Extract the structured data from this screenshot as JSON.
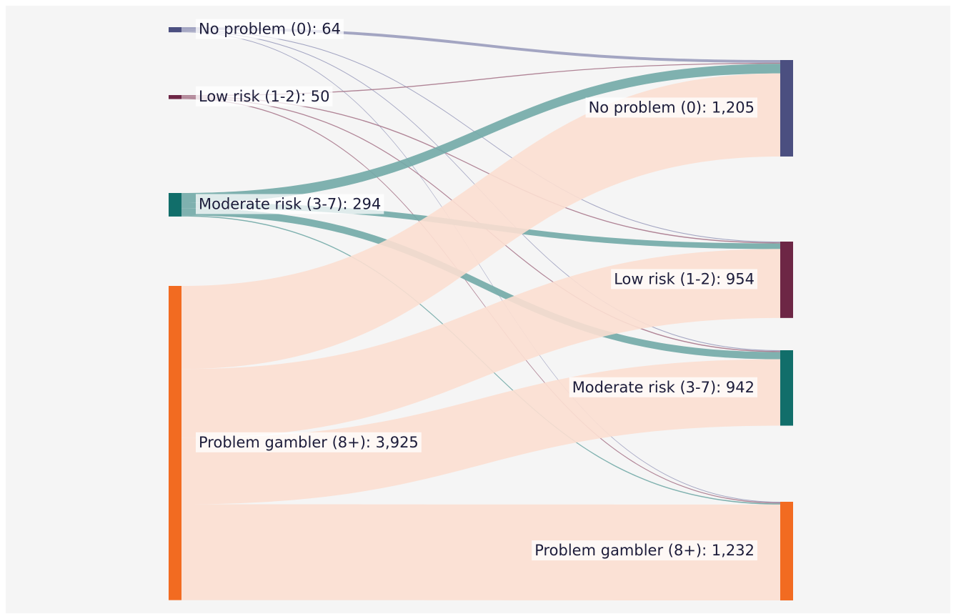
{
  "chart_data": {
    "type": "sankey",
    "nodes": [
      {
        "label": "No problem (0): 64",
        "value": 64,
        "color": "#4b4f80"
      },
      {
        "label": "Low risk (1-2): 50",
        "value": 50,
        "color": "#6d2645"
      },
      {
        "label": "Moderate risk (3-7): 294",
        "value": 294,
        "color": "#116e6a"
      },
      {
        "label": "Problem gambler (8+): 3,925",
        "value": 3925,
        "color": "#f26b21"
      },
      {
        "label": "No problem (0): 1,205",
        "value": 1205,
        "color": "#4b4f80"
      },
      {
        "label": "Low risk (1-2): 954",
        "value": 954,
        "color": "#6d2645"
      },
      {
        "label": "Moderate risk (3-7): 942",
        "value": 942,
        "color": "#116e6a"
      },
      {
        "label": "Problem gambler (8+): 1,232",
        "value": 1232,
        "color": "#f26b21"
      }
    ],
    "links": [
      {
        "source": 0,
        "target": 4,
        "value": 35,
        "color": "#9a9cbc"
      },
      {
        "source": 0,
        "target": 5,
        "value": 10,
        "color": "#9a9cbc"
      },
      {
        "source": 0,
        "target": 6,
        "value": 10,
        "color": "#9a9cbc"
      },
      {
        "source": 0,
        "target": 7,
        "value": 9,
        "color": "#9a9cbc"
      },
      {
        "source": 1,
        "target": 4,
        "value": 12,
        "color": "#a8788c"
      },
      {
        "source": 1,
        "target": 5,
        "value": 13,
        "color": "#a8788c"
      },
      {
        "source": 1,
        "target": 6,
        "value": 13,
        "color": "#a8788c"
      },
      {
        "source": 1,
        "target": 7,
        "value": 12,
        "color": "#a8788c"
      },
      {
        "source": 2,
        "target": 4,
        "value": 120,
        "color": "#72aaa7"
      },
      {
        "source": 2,
        "target": 5,
        "value": 70,
        "color": "#72aaa7"
      },
      {
        "source": 2,
        "target": 6,
        "value": 90,
        "color": "#72aaa7"
      },
      {
        "source": 2,
        "target": 7,
        "value": 14,
        "color": "#72aaa7"
      },
      {
        "source": 3,
        "target": 4,
        "value": 1038,
        "color": "#fcdfd1"
      },
      {
        "source": 3,
        "target": 5,
        "value": 861,
        "color": "#fcdfd1"
      },
      {
        "source": 3,
        "target": 6,
        "value": 829,
        "color": "#fcdfd1"
      },
      {
        "source": 3,
        "target": 7,
        "value": 1197,
        "color": "#fcdfd1"
      }
    ]
  }
}
